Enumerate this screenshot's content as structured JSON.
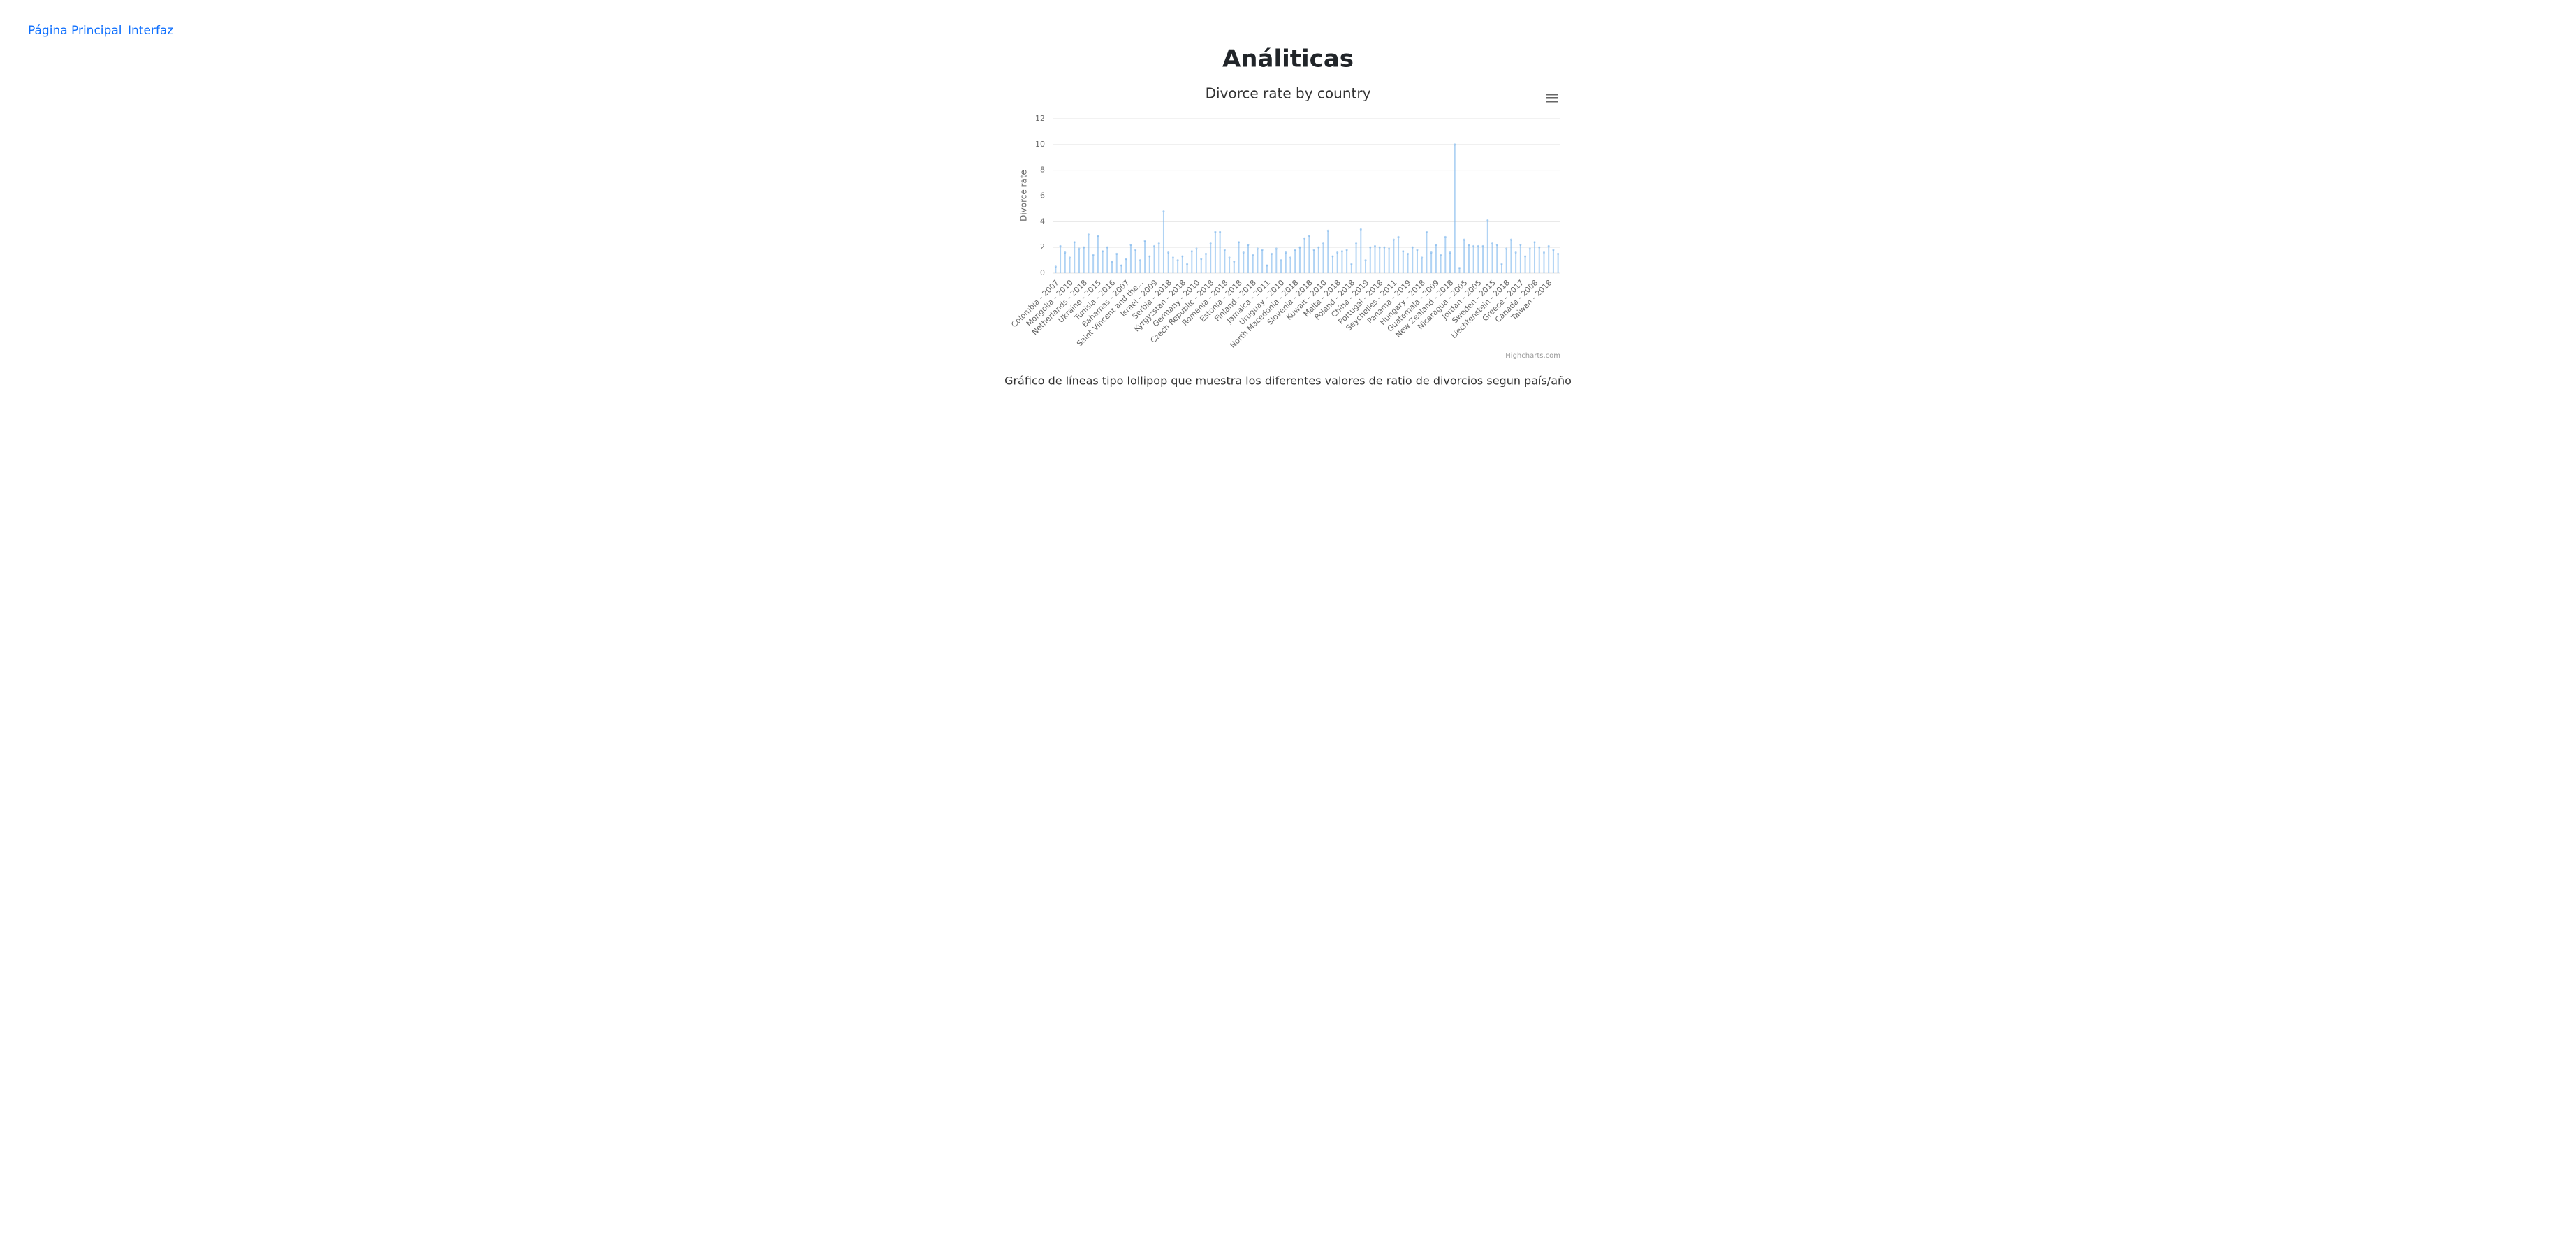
{
  "nav": [
    "Página Principal",
    "Interfaz"
  ],
  "page_title": "Análiticas",
  "caption": "Gráfico de líneas tipo lollipop que muestra los diferentes valores de ratio de divorcios segun país/año",
  "chart_data": {
    "type": "lollipop",
    "title": "Divorce rate by country",
    "y_axis_label": "Divorce rate",
    "credits": "Highcharts.com",
    "color": "#7cb5ec",
    "grid": true,
    "ylim": [
      0,
      12
    ],
    "yticks": [
      0,
      2,
      4,
      6,
      8,
      10,
      12
    ],
    "categories": [
      "Colombia - 2007",
      null,
      null,
      "Mongolia - 2010",
      null,
      null,
      "Netherlands - 2018",
      null,
      null,
      "Ukraine - 2015",
      null,
      null,
      "Tunisia - 2016",
      null,
      null,
      "Bahamas - 2007",
      null,
      null,
      "Saint Vincent and the...",
      null,
      null,
      "Israel - 2009",
      null,
      null,
      "Serbia - 2018",
      null,
      null,
      "Kyrgyzstan - 2018",
      null,
      null,
      "Germany - 2010",
      null,
      null,
      "Czech Republic - 2018",
      null,
      null,
      "Romania - 2018",
      null,
      null,
      "Estonia - 2018",
      null,
      null,
      "Finland - 2018",
      null,
      null,
      "Jamaica - 2011",
      null,
      null,
      "Uruguay - 2010",
      null,
      null,
      "North Macedonia - 2018",
      null,
      null,
      "Slovenia - 2018",
      null,
      null,
      "Kuwait - 2010",
      null,
      null,
      "Malta - 2018",
      null,
      null,
      "Poland - 2018",
      null,
      null,
      "China - 2019",
      null,
      null,
      "Portugal - 2018",
      null,
      null,
      "Seychelles - 2011",
      null,
      null,
      "Panama - 2019",
      null,
      null,
      "Hungary - 2018",
      null,
      null,
      "Guatemala - 2009",
      null,
      null,
      "New Zealand - 2018",
      null,
      null,
      "Nicaragua - 2005",
      null,
      null,
      "Jordan - 2005",
      null,
      null,
      "Sweden - 2015",
      null,
      null,
      "Liechtenstein - 2018",
      null,
      null,
      "Greece - 2017",
      null,
      null,
      "Canada - 2008",
      null,
      null,
      "Taiwan - 2018",
      null,
      null
    ],
    "values": [
      0.5,
      2.1,
      1.6,
      1.2,
      2.4,
      1.9,
      2.0,
      3.0,
      1.4,
      2.9,
      1.7,
      2.0,
      0.9,
      1.5,
      0.6,
      1.1,
      2.2,
      1.8,
      1.0,
      2.5,
      1.3,
      2.1,
      2.3,
      4.8,
      1.6,
      1.2,
      1.0,
      1.3,
      0.7,
      1.7,
      1.9,
      1.1,
      1.5,
      2.3,
      3.2,
      3.2,
      1.8,
      1.2,
      0.9,
      2.4,
      1.6,
      2.2,
      1.4,
      1.9,
      1.8,
      0.6,
      1.5,
      1.9,
      1.0,
      1.6,
      1.2,
      1.8,
      2.0,
      2.7,
      2.9,
      1.8,
      2.0,
      2.3,
      3.3,
      1.3,
      1.6,
      1.7,
      1.8,
      0.7,
      2.3,
      3.4,
      1.0,
      2.0,
      2.1,
      2.0,
      2.0,
      1.9,
      2.6,
      2.8,
      1.7,
      1.5,
      2.0,
      1.8,
      1.2,
      3.2,
      1.6,
      2.2,
      1.4,
      2.8,
      1.6,
      10.0,
      0.4,
      2.6,
      2.2,
      2.1,
      2.1,
      2.1,
      4.1,
      2.3,
      2.2,
      0.7,
      1.9,
      2.6,
      1.6,
      2.2,
      1.3,
      1.9,
      2.4,
      2.0,
      1.6,
      2.1,
      1.8,
      1.5
    ]
  }
}
